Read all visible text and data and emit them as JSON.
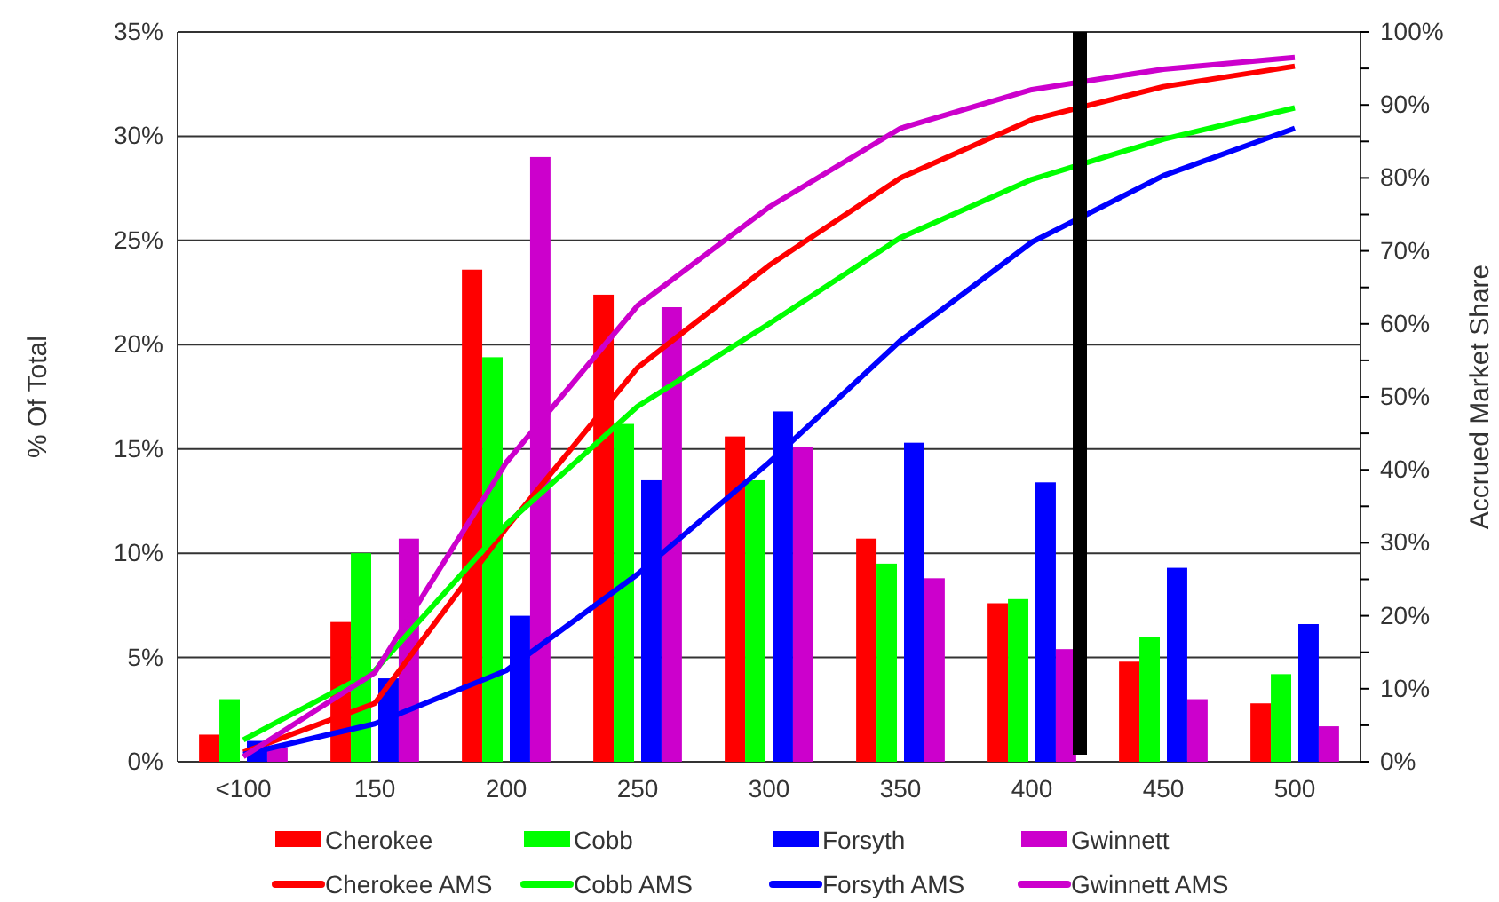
{
  "chart_data": {
    "type": "bar",
    "ylabel": "% Of Total",
    "y2label": "Accrued Market Share",
    "categories": [
      "<100",
      "150",
      "200",
      "250",
      "300",
      "350",
      "400",
      "450",
      "500"
    ],
    "series": [
      {
        "name": "Cherokee",
        "color": "#ff0000",
        "values": [
          1.3,
          6.7,
          23.6,
          22.4,
          15.6,
          10.7,
          7.6,
          4.8,
          2.8
        ]
      },
      {
        "name": "Cobb",
        "color": "#00ff00",
        "values": [
          3.0,
          10.0,
          19.4,
          16.2,
          13.5,
          9.5,
          7.8,
          6.0,
          4.2
        ]
      },
      {
        "name": "Forsyth",
        "color": "#0000ff",
        "values": [
          1.0,
          4.0,
          7.0,
          13.5,
          16.8,
          15.3,
          13.4,
          9.3,
          6.6
        ]
      },
      {
        "name": "Gwinnett",
        "color": "#cc00cc",
        "values": [
          0.7,
          10.7,
          29.0,
          21.8,
          15.1,
          8.8,
          5.4,
          3.0,
          1.7
        ]
      },
      {
        "name": "Cherokee AMS",
        "type": "line",
        "axis": "y2",
        "color": "#ff0000",
        "values": [
          1.3,
          8.0,
          32,
          54,
          68,
          80,
          88,
          92.5,
          95.3
        ]
      },
      {
        "name": "Cobb AMS",
        "type": "line",
        "axis": "y2",
        "color": "#00ff00",
        "values": [
          3.0,
          12.5,
          32.5,
          48.7,
          60,
          71.8,
          79.8,
          85.3,
          89.6
        ]
      },
      {
        "name": "Forsyth AMS",
        "type": "line",
        "axis": "y2",
        "color": "#0000ff",
        "values": [
          1.0,
          5.2,
          12.5,
          25.7,
          41,
          57.7,
          71.2,
          80.3,
          86.8
        ]
      },
      {
        "name": "Gwinnett AMS",
        "type": "line",
        "axis": "y2",
        "color": "#cc00cc",
        "values": [
          0.7,
          12.2,
          41,
          62.5,
          76,
          86.8,
          92.1,
          94.9,
          96.5
        ]
      }
    ],
    "ylim": [
      0,
      35
    ],
    "yticks": [
      {
        "value": 0,
        "label": "0%"
      },
      {
        "value": 5,
        "label": "5%"
      },
      {
        "value": 10,
        "label": "10%"
      },
      {
        "value": 15,
        "label": "15%"
      },
      {
        "value": 20,
        "label": "20%"
      },
      {
        "value": 25,
        "label": "25%"
      },
      {
        "value": 30,
        "label": "30%"
      },
      {
        "value": 35,
        "label": "35%"
      }
    ],
    "y2lim": [
      0,
      100
    ],
    "y2ticks": [
      {
        "value": 0,
        "label": "0%"
      },
      {
        "value": 5,
        "label": null
      },
      {
        "value": 10,
        "label": "10%"
      },
      {
        "value": 15,
        "label": null
      },
      {
        "value": 20,
        "label": "20%"
      },
      {
        "value": 25,
        "label": null
      },
      {
        "value": 30,
        "label": "30%"
      },
      {
        "value": 35,
        "label": null
      },
      {
        "value": 40,
        "label": "40%"
      },
      {
        "value": 45,
        "label": null
      },
      {
        "value": 50,
        "label": "50%"
      },
      {
        "value": 55,
        "label": null
      },
      {
        "value": 60,
        "label": "60%"
      },
      {
        "value": 65,
        "label": null
      },
      {
        "value": 70,
        "label": "70%"
      },
      {
        "value": 75,
        "label": null
      },
      {
        "value": 80,
        "label": "80%"
      },
      {
        "value": 85,
        "label": null
      },
      {
        "value": 90,
        "label": "90%"
      },
      {
        "value": 95,
        "label": null
      },
      {
        "value": 100,
        "label": "100%"
      }
    ],
    "grid": "y",
    "legend": "bottom",
    "line_style": "solid",
    "marker": "none"
  }
}
